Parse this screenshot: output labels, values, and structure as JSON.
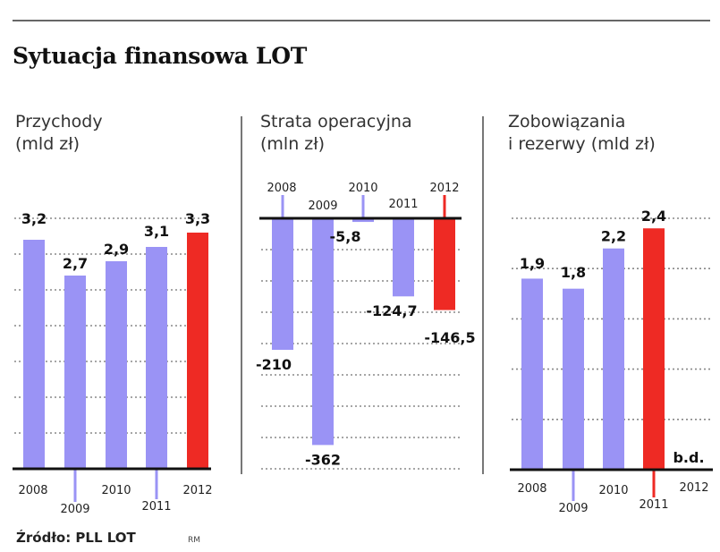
{
  "title": "Sytuacja finansowa LOT",
  "source": "Źródło: PLL LOT",
  "credit": "RM",
  "colors": {
    "bar": "#9A93F5",
    "highlight": "#EE2A24",
    "grid": "#888888",
    "axis": "#111111"
  },
  "chart_data": [
    {
      "type": "bar",
      "title": "Przychody (mld zł)",
      "title_lines": [
        "Przychody",
        "(mld zł)"
      ],
      "categories": [
        "2008",
        "2009",
        "2010",
        "2011",
        "2012"
      ],
      "values": [
        3.2,
        2.7,
        2.9,
        3.1,
        3.3
      ],
      "labels": [
        "3,2",
        "2,7",
        "2,9",
        "3,1",
        "3,3"
      ],
      "highlight_index": 4,
      "ylim": [
        0,
        3.5
      ],
      "grid_step": 0.5,
      "grid": true
    },
    {
      "type": "bar",
      "title": "Strata operacyjna (mln zł)",
      "title_lines": [
        "Strata operacyjna",
        "(mln zł)"
      ],
      "categories": [
        "2008",
        "2009",
        "2010",
        "2011",
        "2012"
      ],
      "values": [
        -210,
        -362,
        -5.8,
        -124.7,
        -146.5
      ],
      "labels": [
        "-210",
        "-362",
        "-5,8",
        "-124,7",
        "-146,5"
      ],
      "highlight_index": 4,
      "ylim": [
        -400,
        0
      ],
      "grid_step": 50,
      "grid": true
    },
    {
      "type": "bar",
      "title": "Zobowiązania i rezerwy (mld zł)",
      "title_lines": [
        "Zobowiązania",
        "i rezerwy (mld zł)"
      ],
      "categories": [
        "2008",
        "2009",
        "2010",
        "2011",
        "2012"
      ],
      "values": [
        1.9,
        1.8,
        2.2,
        2.4,
        null
      ],
      "labels": [
        "1,9",
        "1,8",
        "2,2",
        "2,4",
        "b.d."
      ],
      "highlight_index": 3,
      "ylim": [
        0,
        2.5
      ],
      "grid_step": 0.5,
      "grid": true
    }
  ]
}
